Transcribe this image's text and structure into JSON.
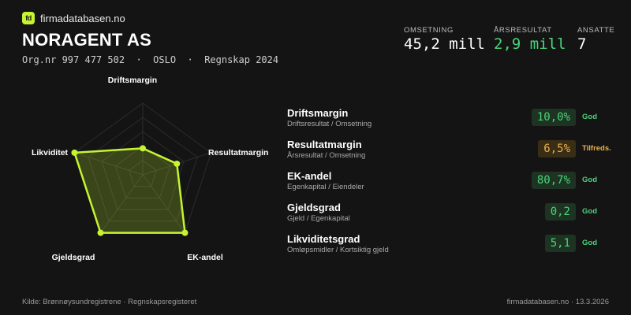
{
  "brand": {
    "logo_text": "fd",
    "name": "firmadatabasen.no"
  },
  "company": {
    "name": "NORAGENT AS",
    "meta": "Org.nr 997 477 502  ·  OSLO  ·  Regnskap 2024"
  },
  "stats": [
    {
      "label": "OMSETNING",
      "value": "45,2 mill",
      "color": "#ffffff"
    },
    {
      "label": "ÅRSRESULTAT",
      "value": "2,9 mill",
      "color": "#4cd37a"
    },
    {
      "label": "ANSATTE",
      "value": "7",
      "color": "#ffffff"
    }
  ],
  "chart_data": {
    "type": "radar",
    "axes": [
      "Driftsmargin",
      "Resultatmargin",
      "EK-andel",
      "Gjeldsgrad",
      "Likviditet"
    ],
    "scores": [
      0.37,
      0.5,
      1.0,
      1.0,
      1.0
    ],
    "rings": 5,
    "colors": {
      "line": "#c6f432",
      "fill": "#c6f432",
      "grid": "#2c2c2c"
    }
  },
  "metrics": [
    {
      "name": "Driftsmargin",
      "desc": "Driftsresultat / Omsetning",
      "value": "10,0%",
      "status": "God",
      "level": "good"
    },
    {
      "name": "Resultatmargin",
      "desc": "Årsresultat / Omsetning",
      "value": "6,5%",
      "status": "Tilfreds.",
      "level": "ok"
    },
    {
      "name": "EK-andel",
      "desc": "Egenkapital / Eiendeler",
      "value": "80,7%",
      "status": "God",
      "level": "good"
    },
    {
      "name": "Gjeldsgrad",
      "desc": "Gjeld / Egenkapital",
      "value": "0,2",
      "status": "God",
      "level": "good"
    },
    {
      "name": "Likviditetsgrad",
      "desc": "Omløpsmidler / Kortsiktig gjeld",
      "value": "5,1",
      "status": "God",
      "level": "good"
    }
  ],
  "footer": {
    "source": "Kilde: Brønnøysundregistrene · Regnskapsregisteret",
    "site_date": "firmadatabasen.no · 13.3.2026"
  }
}
